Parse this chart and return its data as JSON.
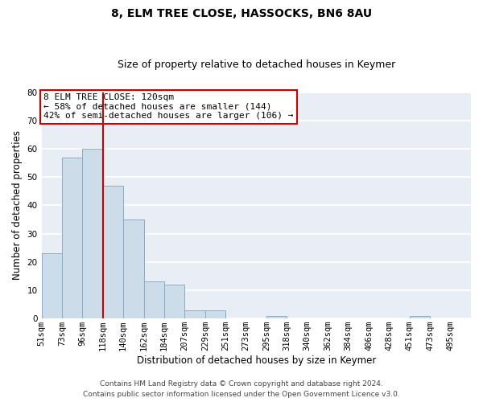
{
  "title": "8, ELM TREE CLOSE, HASSOCKS, BN6 8AU",
  "subtitle": "Size of property relative to detached houses in Keymer",
  "xlabel": "Distribution of detached houses by size in Keymer",
  "ylabel": "Number of detached properties",
  "bar_labels": [
    "51sqm",
    "73sqm",
    "96sqm",
    "118sqm",
    "140sqm",
    "162sqm",
    "184sqm",
    "207sqm",
    "229sqm",
    "251sqm",
    "273sqm",
    "295sqm",
    "318sqm",
    "340sqm",
    "362sqm",
    "384sqm",
    "406sqm",
    "428sqm",
    "451sqm",
    "473sqm",
    "495sqm"
  ],
  "bar_values": [
    23,
    57,
    60,
    47,
    35,
    13,
    12,
    3,
    3,
    0,
    0,
    1,
    0,
    0,
    0,
    0,
    0,
    0,
    1,
    0,
    0
  ],
  "bar_color": "#ccdce8",
  "bar_edge_color": "#88aac8",
  "vline_x": 3.0,
  "vline_color": "#cc0000",
  "annotation_text_line1": "8 ELM TREE CLOSE: 120sqm",
  "annotation_text_line2": "← 58% of detached houses are smaller (144)",
  "annotation_text_line3": "42% of semi-detached houses are larger (106) →",
  "annotation_box_color": "#cc0000",
  "ylim": [
    0,
    80
  ],
  "yticks": [
    0,
    10,
    20,
    30,
    40,
    50,
    60,
    70,
    80
  ],
  "footer_line1": "Contains HM Land Registry data © Crown copyright and database right 2024.",
  "footer_line2": "Contains public sector information licensed under the Open Government Licence v3.0.",
  "background_color": "#e8eef4",
  "grid_color": "#ffffff",
  "title_fontsize": 10,
  "subtitle_fontsize": 9,
  "axis_label_fontsize": 8.5,
  "tick_fontsize": 7.5,
  "annotation_fontsize": 8,
  "footer_fontsize": 6.5
}
